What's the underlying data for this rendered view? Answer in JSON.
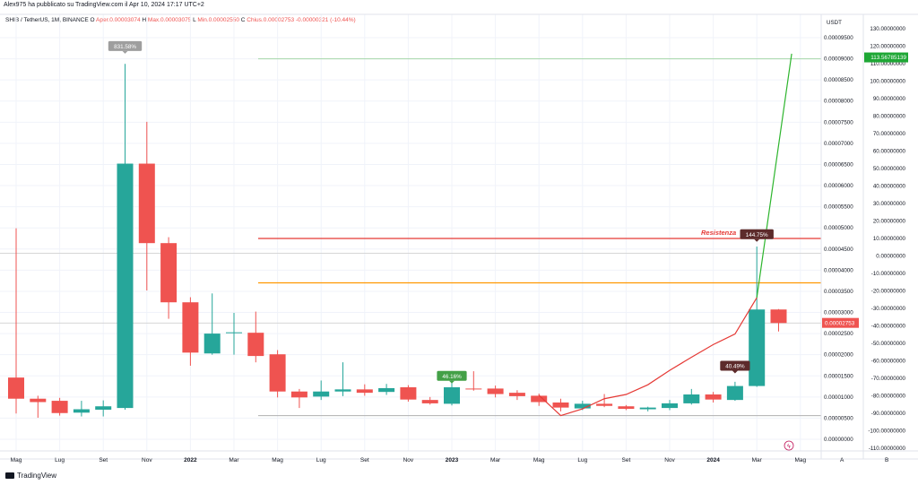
{
  "header": {
    "published_by": "Alex975 ha pubblicato su TradingView.com il Apr 10, 2024 17:17 UTC+2",
    "symbol": "SHIB / TetherUS, 1M, BINANCE",
    "open_label": "O",
    "open_value": "Aper.0.00003074",
    "high_label": "H",
    "high_value": "Max.0.00003075",
    "low_label": "L",
    "low_value": "Min.0.00002550",
    "close_label": "C",
    "close_value": "Chius.0.00002753",
    "change_value": "-0.00000321 (-10.44%)"
  },
  "footer": {
    "brand": "TradingView",
    "brand_icon": "tradingview-logo-icon"
  },
  "colors": {
    "bull": "#26a69a",
    "bear": "#ef5350",
    "projection": "#2db52d",
    "resistance": "#e53935",
    "support_orange": "#ff9800",
    "price_badge": "#ef5350",
    "target_badge": "#1ea735"
  },
  "chart_data": {
    "type": "candlestick",
    "currency_label": "USDT",
    "price_axis": {
      "min": 0,
      "max": 9.5e-05,
      "ticks": [
        "0.00009500",
        "0.00009000",
        "0.00008500",
        "0.00008000",
        "0.00007500",
        "0.00007000",
        "0.00006500",
        "0.00006000",
        "0.00005500",
        "0.00005000",
        "0.00004500",
        "0.00004000",
        "0.00003500",
        "0.00003000",
        "0.00002500",
        "0.00002000",
        "0.00001500",
        "0.00001000",
        "0.00000500",
        "0.00000000"
      ]
    },
    "pct_axis": {
      "min": -110,
      "max": 130,
      "ticks": [
        "130.00000000",
        "120.00000000",
        "110.00000000",
        "100.00000000",
        "90.00000000",
        "80.00000000",
        "70.00000000",
        "60.00000000",
        "50.00000000",
        "40.00000000",
        "30.00000000",
        "20.00000000",
        "10.00000000",
        "0.00000000",
        "-10.00000000",
        "-20.00000000",
        "-30.00000000",
        "-40.00000000",
        "-50.00000000",
        "-60.00000000",
        "-70.00000000",
        "-80.00000000",
        "-90.00000000",
        "-100.00000000",
        "-110.00000000"
      ]
    },
    "x_labels": [
      "Mag",
      "Lug",
      "Set",
      "Nov",
      "2022",
      "Mar",
      "Mag",
      "Lug",
      "Set",
      "Nov",
      "2023",
      "Mar",
      "Mag",
      "Lug",
      "Set",
      "Nov",
      "2024",
      "Mar",
      "Mag"
    ],
    "x_label_index": [
      0,
      2,
      4,
      6,
      8,
      10,
      12,
      14,
      16,
      18,
      20,
      22,
      24,
      26,
      28,
      30,
      32,
      34,
      36
    ],
    "candles": [
      {
        "o": 1.46e-05,
        "h": 4.99e-05,
        "l": 6.1e-06,
        "c": 9.6e-06
      },
      {
        "o": 9.6e-06,
        "h": 1.03e-05,
        "l": 5.1e-06,
        "c": 8.8e-06
      },
      {
        "o": 9.1e-06,
        "h": 9.8e-06,
        "l": 5.6e-06,
        "c": 6.2e-06
      },
      {
        "o": 6.3e-06,
        "h": 9.1e-06,
        "l": 5.4e-06,
        "c": 7.1e-06
      },
      {
        "o": 7e-06,
        "h": 9.2e-06,
        "l": 5.4e-06,
        "c": 7.8e-06
      },
      {
        "o": 7.4e-06,
        "h": 8.88e-05,
        "l": 7e-06,
        "c": 6.52e-05
      },
      {
        "o": 6.52e-05,
        "h": 7.51e-05,
        "l": 3.52e-05,
        "c": 4.64e-05
      },
      {
        "o": 4.64e-05,
        "h": 4.78e-05,
        "l": 2.85e-05,
        "c": 3.24e-05
      },
      {
        "o": 3.24e-05,
        "h": 3.36e-05,
        "l": 1.74e-05,
        "c": 2.05e-05
      },
      {
        "o": 2.03e-05,
        "h": 3.45e-05,
        "l": 2e-05,
        "c": 2.5e-05
      },
      {
        "o": 2.53e-05,
        "h": 2.99e-05,
        "l": 2e-05,
        "c": 2.53e-05
      },
      {
        "o": 2.52e-05,
        "h": 3.02e-05,
        "l": 1.82e-05,
        "c": 1.97e-05
      },
      {
        "o": 2.01e-05,
        "h": 2.11e-05,
        "l": 9.9e-06,
        "c": 1.13e-05
      },
      {
        "o": 1.13e-05,
        "h": 1.19e-05,
        "l": 7.4e-06,
        "c": 9.9e-06
      },
      {
        "o": 1.01e-05,
        "h": 1.39e-05,
        "l": 9.3e-06,
        "c": 1.13e-05
      },
      {
        "o": 1.13e-05,
        "h": 1.82e-05,
        "l": 1.02e-05,
        "c": 1.18e-05
      },
      {
        "o": 1.18e-05,
        "h": 1.3e-05,
        "l": 1.03e-05,
        "c": 1.1e-05
      },
      {
        "o": 1.12e-05,
        "h": 1.31e-05,
        "l": 1.05e-05,
        "c": 1.21e-05
      },
      {
        "o": 1.23e-05,
        "h": 1.28e-05,
        "l": 8.9e-06,
        "c": 9.4e-06
      },
      {
        "o": 9.3e-06,
        "h": 1e-05,
        "l": 8.2e-06,
        "c": 8.5e-06
      },
      {
        "o": 8.4e-06,
        "h": 1.57e-05,
        "l": 8e-06,
        "c": 1.23e-05
      },
      {
        "o": 1.2e-05,
        "h": 1.61e-05,
        "l": 1.15e-05,
        "c": 1.19e-05
      },
      {
        "o": 1.2e-05,
        "h": 1.27e-05,
        "l": 9.9e-06,
        "c": 1.07e-05
      },
      {
        "o": 1.1e-05,
        "h": 1.16e-05,
        "l": 9.3e-06,
        "c": 1.02e-05
      },
      {
        "o": 1.03e-05,
        "h": 1.08e-05,
        "l": 7.9e-06,
        "c": 8.8e-06
      },
      {
        "o": 8.7e-06,
        "h": 9.6e-06,
        "l": 6.6e-06,
        "c": 7.5e-06
      },
      {
        "o": 7.3e-06,
        "h": 9.1e-06,
        "l": 6.9e-06,
        "c": 8.4e-06
      },
      {
        "o": 8.4e-06,
        "h": 1.07e-05,
        "l": 7.6e-06,
        "c": 7.9e-06
      },
      {
        "o": 7.8e-06,
        "h": 8.1e-06,
        "l": 6.9e-06,
        "c": 7.2e-06
      },
      {
        "o": 7.1e-06,
        "h": 7.7e-06,
        "l": 6.6e-06,
        "c": 7.5e-06
      },
      {
        "o": 7.4e-06,
        "h": 9.3e-06,
        "l": 6.9e-06,
        "c": 8.5e-06
      },
      {
        "o": 8.5e-06,
        "h": 1.19e-05,
        "l": 8.2e-06,
        "c": 1.06e-05
      },
      {
        "o": 1.06e-05,
        "h": 1.12e-05,
        "l": 8.7e-06,
        "c": 9.4e-06
      },
      {
        "o": 9.3e-06,
        "h": 1.36e-05,
        "l": 9.1e-06,
        "c": 1.26e-05
      },
      {
        "o": 1.26e-05,
        "h": 4.56e-05,
        "l": 1.24e-05,
        "c": 3.07e-05
      },
      {
        "o": 3.07e-05,
        "h": 3.08e-05,
        "l": 2.55e-05,
        "c": 2.75e-05
      }
    ],
    "horizontal_lines": [
      {
        "name": "green-target-line",
        "price": 9e-05,
        "color": "#a5d6a7"
      },
      {
        "name": "resistance-line",
        "price": 4.75e-05,
        "color": "#e53935"
      },
      {
        "name": "orange-line",
        "price": 3.7e-05,
        "color": "#ff9800"
      },
      {
        "name": "lower-gray-line",
        "price": 5.6e-06,
        "color": "#b0b0b0"
      },
      {
        "name": "resistance-gray-line",
        "price": 4.4e-05,
        "color": "#d6d6d6"
      },
      {
        "name": "current-gray-line",
        "price": 2.75e-05,
        "color": "#d6d6d6"
      }
    ],
    "red_projection": [
      [
        24,
        1.04e-05
      ],
      [
        25,
        5.6e-06
      ],
      [
        26,
        7.2e-06
      ],
      [
        27,
        9.6e-06
      ],
      [
        28,
        1.06e-05
      ],
      [
        29,
        1.29e-05
      ],
      [
        30,
        1.63e-05
      ],
      [
        31,
        1.94e-05
      ],
      [
        32,
        2.24e-05
      ],
      [
        33,
        2.49e-05
      ],
      [
        34,
        3.35e-05
      ]
    ],
    "green_projection": [
      [
        34,
        3.35e-05
      ],
      [
        35.6,
        9.12e-05
      ]
    ],
    "annotations": [
      {
        "name": "ath-label",
        "text": "831.58%",
        "candle": 5,
        "price": 9.3e-05,
        "bg": "#9e9e9e",
        "fg": "#ffffff"
      },
      {
        "name": "pct-label-2023",
        "text": "46.16%",
        "candle": 20,
        "price": 1.5e-05,
        "bg": "#43a047",
        "fg": "#ffffff"
      },
      {
        "name": "pct-label-2024",
        "text": "40.49%",
        "candle": 33,
        "price": 1.74e-05,
        "bg": "#5d2b2b",
        "fg": "#ffffff"
      },
      {
        "name": "pct-label-resist",
        "text": "144.75%",
        "candle": 34,
        "price": 4.85e-05,
        "bg": "#5d2b2b",
        "fg": "#ffffff"
      }
    ],
    "resistance_text": "Resistenza",
    "current_price_badge": "0.00002753",
    "target_badge": "113.56785139",
    "target_pct": 113.56785139,
    "axis_bottom_letters": [
      "A",
      "B"
    ]
  }
}
